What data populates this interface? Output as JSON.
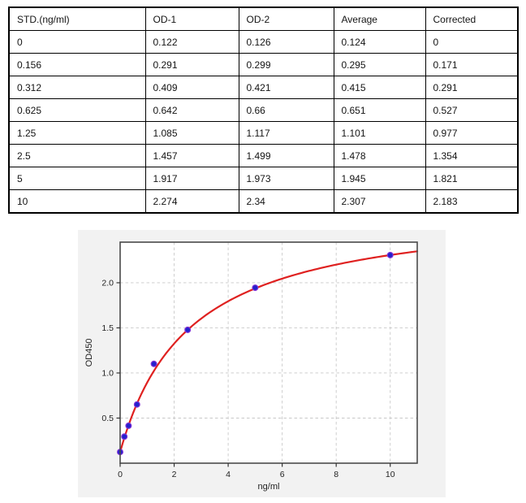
{
  "table": {
    "headers": [
      "STD.(ng/ml)",
      "OD-1",
      "OD-2",
      "Average",
      "Corrected"
    ],
    "rows": [
      [
        "0",
        "0.122",
        "0.126",
        "0.124",
        "0"
      ],
      [
        "0.156",
        "0.291",
        "0.299",
        "0.295",
        "0.171"
      ],
      [
        "0.312",
        "0.409",
        "0.421",
        "0.415",
        "0.291"
      ],
      [
        "0.625",
        "0.642",
        "0.66",
        "0.651",
        "0.527"
      ],
      [
        "1.25",
        "1.085",
        "1.117",
        "1.101",
        "0.977"
      ],
      [
        "2.5",
        "1.457",
        "1.499",
        "1.478",
        "1.354"
      ],
      [
        "5",
        "1.917",
        "1.973",
        "1.945",
        "1.821"
      ],
      [
        "10",
        "2.274",
        "2.34",
        "2.307",
        "2.183"
      ]
    ]
  },
  "chart_data": {
    "type": "scatter",
    "title": "",
    "xlabel": "ng/ml",
    "ylabel": "OD450",
    "x": [
      0,
      0.156,
      0.312,
      0.625,
      1.25,
      2.5,
      5,
      10
    ],
    "y": [
      0.124,
      0.295,
      0.415,
      0.651,
      1.101,
      1.478,
      1.945,
      2.307
    ],
    "xlim": [
      0,
      11
    ],
    "ylim": [
      0,
      2.45
    ],
    "xtick_values": [
      0,
      2,
      4,
      6,
      8,
      10
    ],
    "xtick_labels": [
      "0",
      "2",
      "4",
      "6",
      "8",
      "10"
    ],
    "ytick_values": [
      0.5,
      1.0,
      1.5,
      2.0
    ],
    "ytick_labels": [
      "0.5",
      "1.0",
      "1.5",
      "2.0"
    ],
    "grid": true,
    "grid_style": "dashed",
    "legend_position": "none",
    "fit_curve": {
      "model": "y = y0 + a*x/(k+x)",
      "y0": 0.124,
      "a": 2.743,
      "k": 2.565
    },
    "colors": {
      "curve": "#df2120",
      "point_fill": "#2222cb",
      "point_edge": "#8032d8",
      "grid": "#c9c9c9",
      "spine": "#4a4a4a",
      "figure_bg": "#f2f2f2",
      "plot_bg": "#ffffff",
      "tick_text": "#222222"
    }
  }
}
